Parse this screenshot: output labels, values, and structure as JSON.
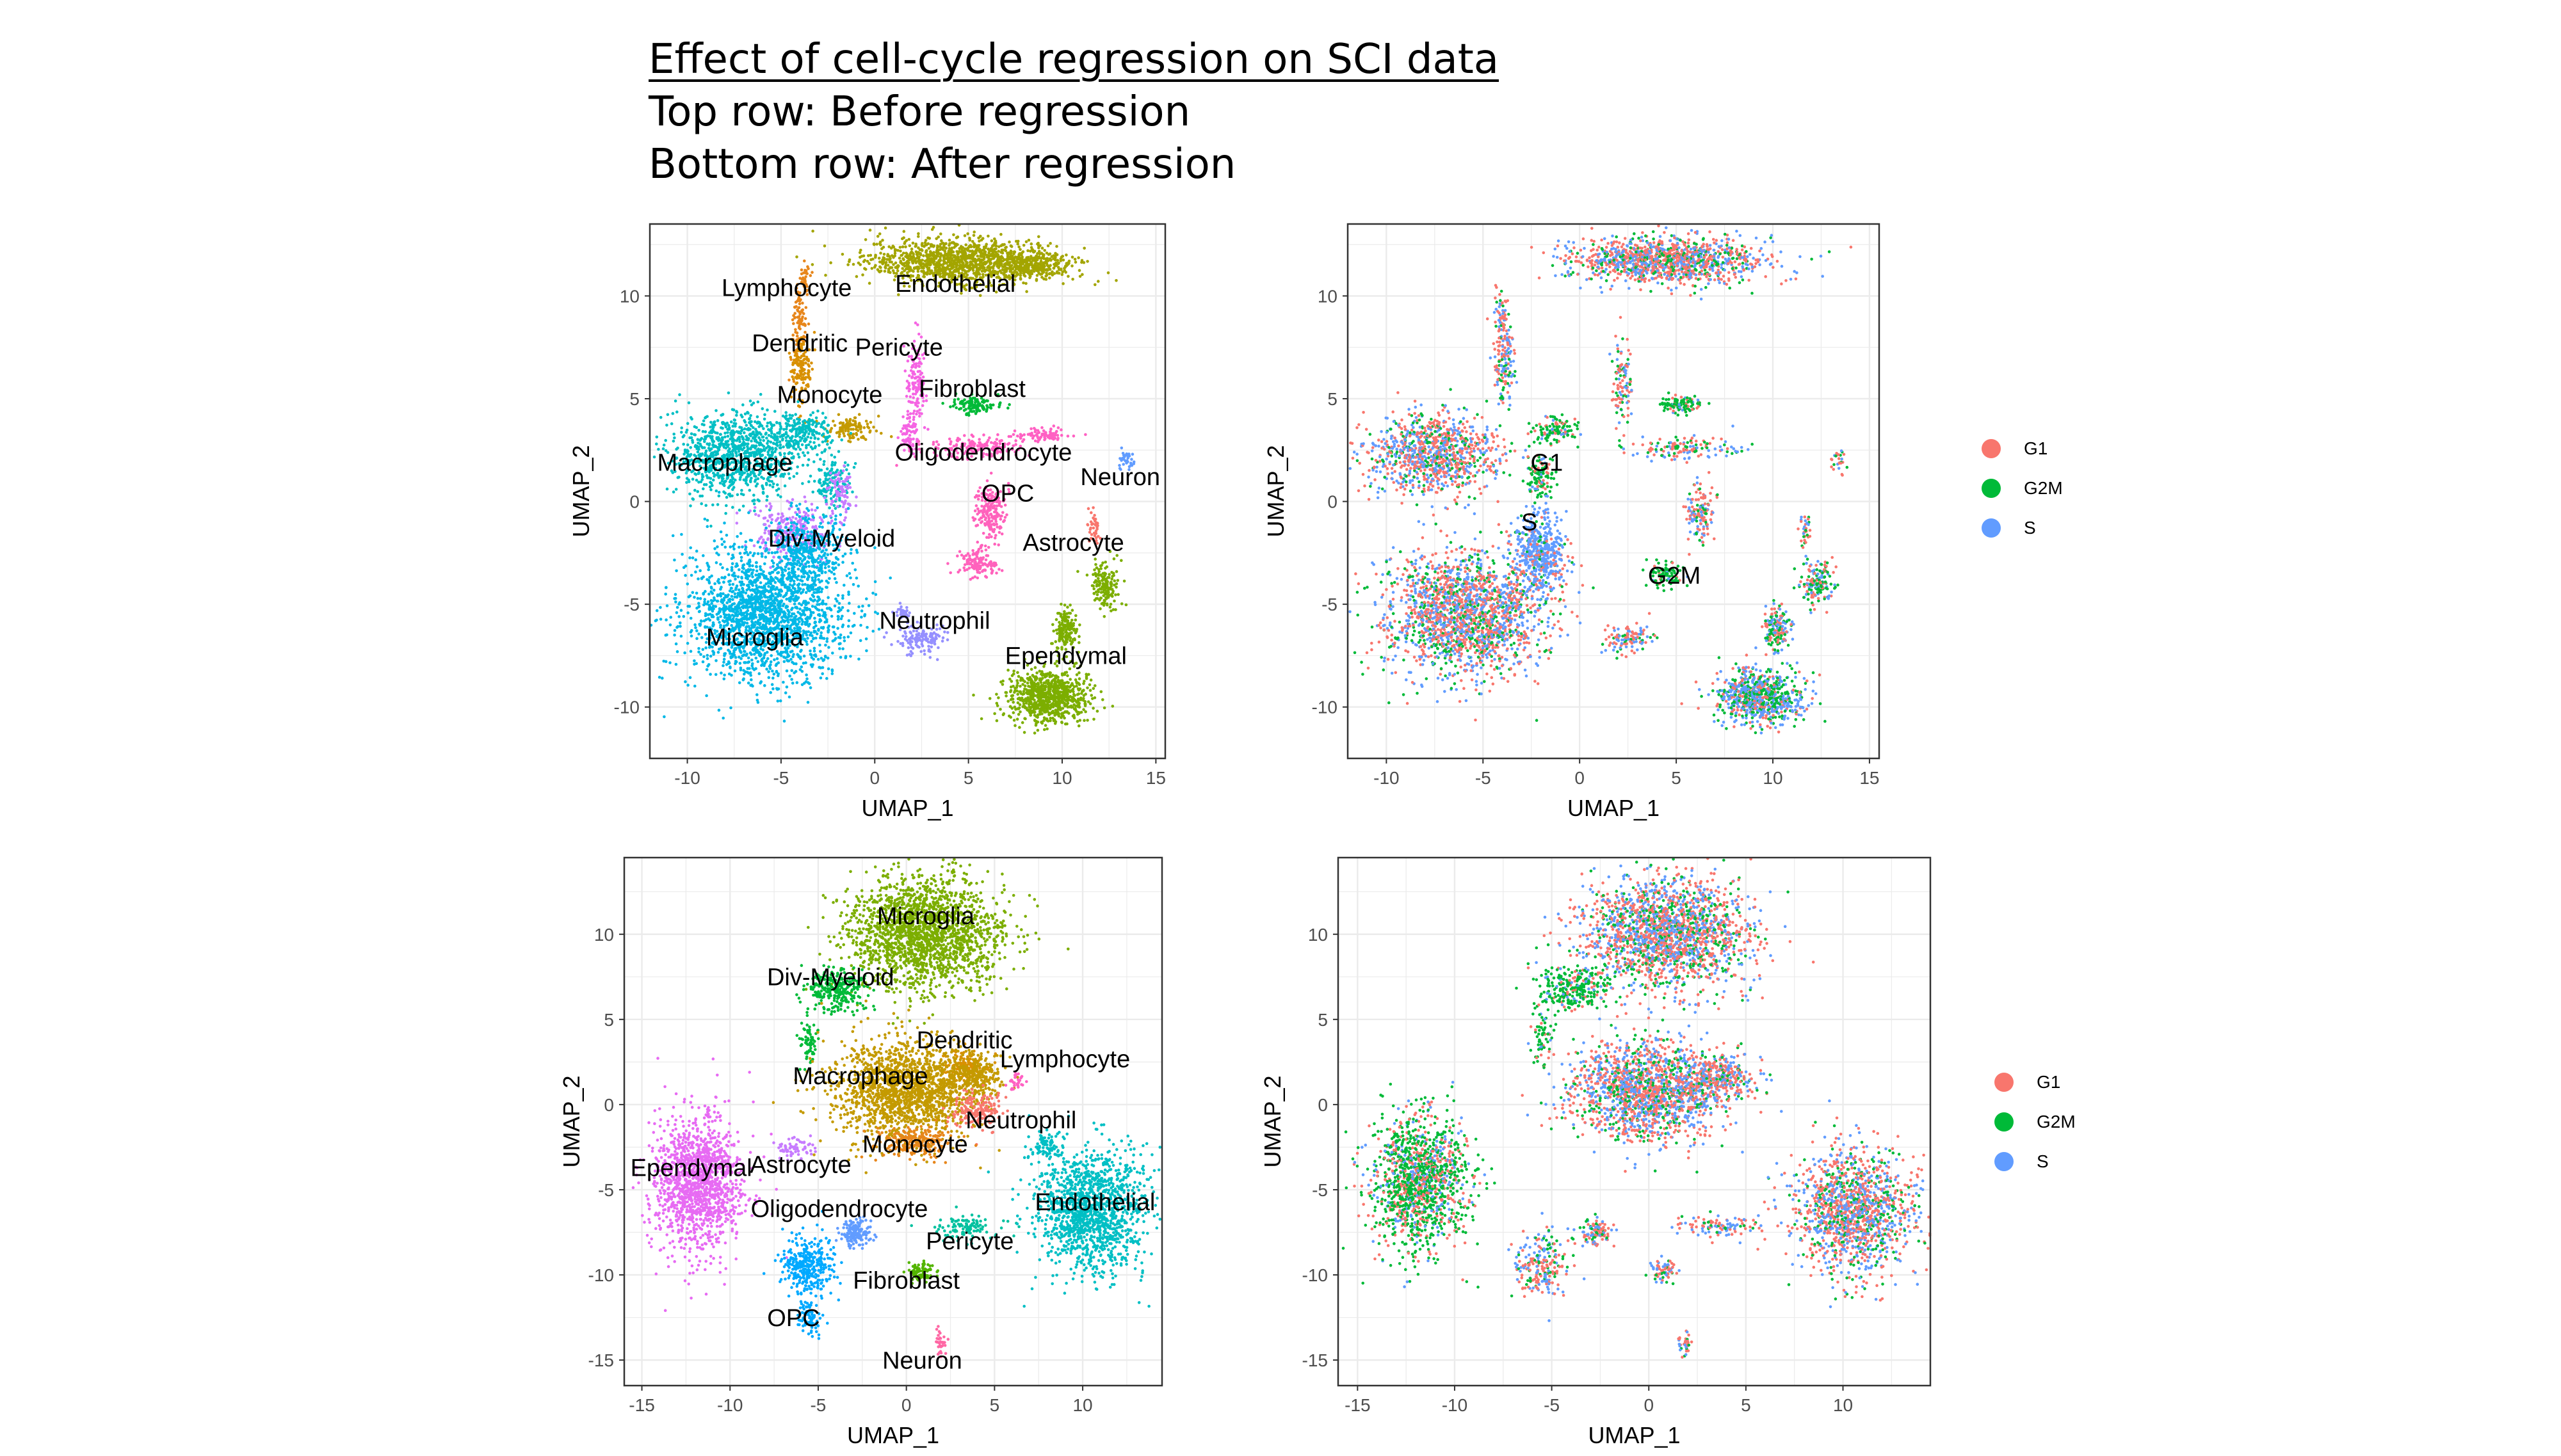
{
  "title": {
    "main": "Effect of cell-cycle regression on SCI data",
    "line2": "Top row: Before regression",
    "line3": "Bottom row: After regression"
  },
  "colors": {
    "G1": "#F8766D",
    "G2M": "#00BA38",
    "S": "#619CFF"
  },
  "legend": {
    "top": [
      "G1",
      "G2M",
      "S"
    ],
    "bottom": [
      "G1",
      "G2M",
      "S"
    ]
  },
  "chart_data": [
    {
      "type": "scatter",
      "panel": "top-left",
      "xlabel": "UMAP_1",
      "ylabel": "UMAP_2",
      "xlim": [
        -12,
        15.5
      ],
      "ylim": [
        -12.5,
        13.5
      ],
      "xticks": [
        -10,
        -5,
        0,
        5,
        10,
        15
      ],
      "yticks": [
        -10,
        -5,
        0,
        5,
        10
      ],
      "grid": true,
      "clusters": [
        {
          "name": "Endothelial",
          "color": "#A3A500",
          "label_at": [
            4.3,
            10.2
          ],
          "blobs": [
            [
              4.5,
              11.7,
              4.5,
              1.0,
              2200
            ],
            [
              8.5,
              11.5,
              2.0,
              0.5,
              500
            ]
          ]
        },
        {
          "name": "Lymphocyte",
          "color": "#E7861B",
          "label_at": [
            -4.7,
            10.0
          ],
          "blobs": [
            [
              -4.0,
              8.5,
              0.35,
              2.0,
              180
            ],
            [
              -3.7,
              10.8,
              0.25,
              0.7,
              60
            ]
          ]
        },
        {
          "name": "Dendritic",
          "color": "#D89000",
          "label_at": [
            -4.0,
            7.3
          ],
          "blobs": [
            [
              -3.9,
              6.5,
              0.5,
              1.6,
              250
            ]
          ]
        },
        {
          "name": "Pericyte",
          "color": "#F564E3",
          "label_at": [
            1.3,
            7.1
          ],
          "blobs": [
            [
              2.2,
              5.8,
              0.5,
              1.8,
              250
            ],
            [
              1.8,
              3.2,
              0.5,
              0.8,
              120
            ]
          ]
        },
        {
          "name": "Fibroblast",
          "color": "#00BA38",
          "label_at": [
            5.2,
            5.1
          ],
          "blobs": [
            [
              5.3,
              4.7,
              1.0,
              0.4,
              220
            ]
          ]
        },
        {
          "name": "Monocyte",
          "color": "#C49A00",
          "label_at": [
            -2.4,
            4.8
          ],
          "blobs": [
            [
              -1.2,
              3.6,
              1.2,
              0.6,
              200
            ]
          ]
        },
        {
          "name": "Oligodendrocyte",
          "color": "#FF61C3",
          "label_at": [
            5.8,
            2.0
          ],
          "blobs": [
            [
              5.5,
              2.6,
              2.5,
              0.5,
              300
            ],
            [
              9.0,
              3.2,
              1.5,
              0.3,
              150
            ]
          ]
        },
        {
          "name": "Macrophage",
          "color": "#00BFC4",
          "label_at": [
            -8.0,
            1.5
          ],
          "blobs": [
            [
              -7.5,
              2.3,
              3.2,
              1.8,
              1800
            ],
            [
              -4.0,
              3.4,
              1.5,
              0.8,
              400
            ],
            [
              -2.3,
              1.0,
              0.9,
              1.2,
              250
            ]
          ]
        },
        {
          "name": "Div-Myeloid",
          "color": "#C77CFF",
          "label_at": [
            -2.3,
            -2.2
          ],
          "blobs": [
            [
              -4.5,
              -1.5,
              1.8,
              1.2,
              500
            ],
            [
              -1.8,
              0.5,
              0.6,
              1.2,
              150
            ]
          ]
        },
        {
          "name": "OPC",
          "color": "#FF62BC",
          "label_at": [
            7.1,
            0.0
          ],
          "blobs": [
            [
              6.2,
              -0.5,
              0.7,
              1.2,
              350
            ],
            [
              5.5,
              -3.0,
              1.0,
              0.6,
              250
            ]
          ]
        },
        {
          "name": "Neuron",
          "color": "#619CFF",
          "label_at": [
            13.1,
            0.8
          ],
          "blobs": [
            [
              13.4,
              2.0,
              0.4,
              0.5,
              60
            ]
          ]
        },
        {
          "name": "Astrocyte",
          "color": "#F8766D",
          "label_at": [
            10.6,
            -2.4
          ],
          "blobs": [
            [
              11.7,
              -1.3,
              0.3,
              0.9,
              70
            ]
          ]
        },
        {
          "name": "Microglia",
          "color": "#00B8E7",
          "label_at": [
            -6.4,
            -7.0
          ],
          "blobs": [
            [
              -6.0,
              -5.5,
              3.8,
              2.8,
              3500
            ],
            [
              -3.5,
              -2.5,
              1.6,
              1.8,
              700
            ]
          ]
        },
        {
          "name": "Neutrophil",
          "color": "#9590FF",
          "label_at": [
            3.2,
            -6.2
          ],
          "blobs": [
            [
              2.5,
              -6.7,
              1.2,
              0.6,
              250
            ],
            [
              1.5,
              -5.5,
              0.4,
              0.4,
              60
            ]
          ]
        },
        {
          "name": "Ependymal",
          "color": "#7CAE00",
          "label_at": [
            10.2,
            -7.9
          ],
          "blobs": [
            [
              9.3,
              -9.5,
              2.0,
              1.2,
              1500
            ],
            [
              10.2,
              -6.2,
              0.6,
              1.0,
              300
            ],
            [
              12.3,
              -4.0,
              0.8,
              1.0,
              300
            ]
          ]
        }
      ]
    },
    {
      "type": "scatter",
      "panel": "top-right",
      "xlabel": "UMAP_1",
      "ylabel": "UMAP_2",
      "xlim": [
        -12,
        15.5
      ],
      "ylim": [
        -12.5,
        13.5
      ],
      "xticks": [
        -10,
        -5,
        0,
        5,
        10,
        15
      ],
      "yticks": [
        -10,
        -5,
        0,
        5,
        10
      ],
      "grid": true,
      "labels": [
        {
          "text": "G1",
          "at": [
            -1.7,
            1.5
          ]
        },
        {
          "text": "S",
          "at": [
            -2.6,
            -1.4
          ]
        },
        {
          "text": "G2M",
          "at": [
            4.9,
            -4.0
          ]
        }
      ]
    },
    {
      "type": "scatter",
      "panel": "bottom-left",
      "xlabel": "UMAP_1",
      "ylabel": "UMAP_2",
      "xlim": [
        -16,
        14.5
      ],
      "ylim": [
        -16.5,
        14.5
      ],
      "xticks": [
        -15,
        -10,
        -5,
        0,
        5,
        10
      ],
      "yticks": [
        -15,
        -10,
        -5,
        0,
        5,
        10
      ],
      "grid": true,
      "clusters": [
        {
          "name": "Microglia",
          "color": "#7CAE00",
          "label_at": [
            1.1,
            10.6
          ],
          "blobs": [
            [
              1.0,
              10.0,
              3.8,
              3.0,
              3500
            ]
          ]
        },
        {
          "name": "Div-Myeloid",
          "color": "#00BA38",
          "label_at": [
            -4.3,
            7.0
          ],
          "blobs": [
            [
              -4.0,
              6.8,
              1.6,
              1.2,
              500
            ],
            [
              -5.5,
              3.8,
              0.5,
              1.5,
              120
            ]
          ]
        },
        {
          "name": "Dendritic",
          "color": "#D89000",
          "label_at": [
            3.3,
            3.3
          ],
          "blobs": [
            [
              3.3,
              2.2,
              1.2,
              0.8,
              250
            ]
          ]
        },
        {
          "name": "Macrophage",
          "color": "#C49A00",
          "label_at": [
            -2.6,
            1.2
          ],
          "blobs": [
            [
              0.0,
              0.8,
              3.6,
              2.5,
              3000
            ],
            [
              3.7,
              1.6,
              1.6,
              1.2,
              500
            ]
          ]
        },
        {
          "name": "Lymphocyte",
          "color": "#FF61C3",
          "label_at": [
            9.0,
            2.2
          ],
          "blobs": [
            [
              6.2,
              1.4,
              0.4,
              0.6,
              60
            ]
          ]
        },
        {
          "name": "Neutrophil",
          "color": "#F8766D",
          "label_at": [
            6.5,
            -1.4
          ],
          "blobs": [
            [
              4.0,
              -0.4,
              1.3,
              0.9,
              300
            ]
          ]
        },
        {
          "name": "Monocyte",
          "color": "#E7861B",
          "label_at": [
            0.5,
            -2.8
          ],
          "blobs": [
            [
              0.5,
              -2.2,
              2.0,
              0.9,
              400
            ]
          ]
        },
        {
          "name": "Astrocyte",
          "color": "#C77CFF",
          "label_at": [
            -6.0,
            -4.0
          ],
          "blobs": [
            [
              -6.3,
              -2.6,
              1.2,
              0.5,
              120
            ]
          ]
        },
        {
          "name": "Ependymal",
          "color": "#E76BF3",
          "label_at": [
            -12.2,
            -4.2
          ],
          "blobs": [
            [
              -11.8,
              -4.5,
              2.3,
              3.6,
              2500
            ]
          ]
        },
        {
          "name": "Oligodendrocyte",
          "color": "#619CFF",
          "label_at": [
            -3.8,
            -6.6
          ],
          "blobs": [
            [
              -2.8,
              -7.5,
              0.8,
              0.7,
              300
            ]
          ]
        },
        {
          "name": "Pericyte",
          "color": "#00C19F",
          "label_at": [
            3.6,
            -8.5
          ],
          "blobs": [
            [
              3.4,
              -7.2,
              1.8,
              0.6,
              200
            ]
          ]
        },
        {
          "name": "Endothelial",
          "color": "#00BFC4",
          "label_at": [
            10.7,
            -6.2
          ],
          "blobs": [
            [
              10.5,
              -6.2,
              2.8,
              3.3,
              2500
            ],
            [
              8.0,
              -2.5,
              0.8,
              0.8,
              150
            ]
          ]
        },
        {
          "name": "Fibroblast",
          "color": "#53B400",
          "label_at": [
            0.0,
            -10.8
          ],
          "blobs": [
            [
              0.8,
              -9.8,
              0.7,
              0.6,
              150
            ]
          ]
        },
        {
          "name": "OPC",
          "color": "#00A9FF",
          "label_at": [
            -6.4,
            -13.0
          ],
          "blobs": [
            [
              -5.6,
              -9.5,
              1.3,
              1.6,
              600
            ],
            [
              -5.5,
              -12.5,
              0.6,
              0.9,
              150
            ]
          ]
        },
        {
          "name": "Neuron",
          "color": "#FF67A4",
          "label_at": [
            0.9,
            -15.5
          ],
          "blobs": [
            [
              1.9,
              -14.0,
              0.3,
              0.7,
              60
            ]
          ]
        }
      ]
    },
    {
      "type": "scatter",
      "panel": "bottom-right",
      "xlabel": "UMAP_1",
      "ylabel": "UMAP_2",
      "xlim": [
        -16,
        14.5
      ],
      "ylim": [
        -16.5,
        14.5
      ],
      "xticks": [
        -15,
        -10,
        -5,
        0,
        5,
        10
      ],
      "yticks": [
        -15,
        -10,
        -5,
        0,
        5,
        10
      ],
      "grid": true
    }
  ]
}
